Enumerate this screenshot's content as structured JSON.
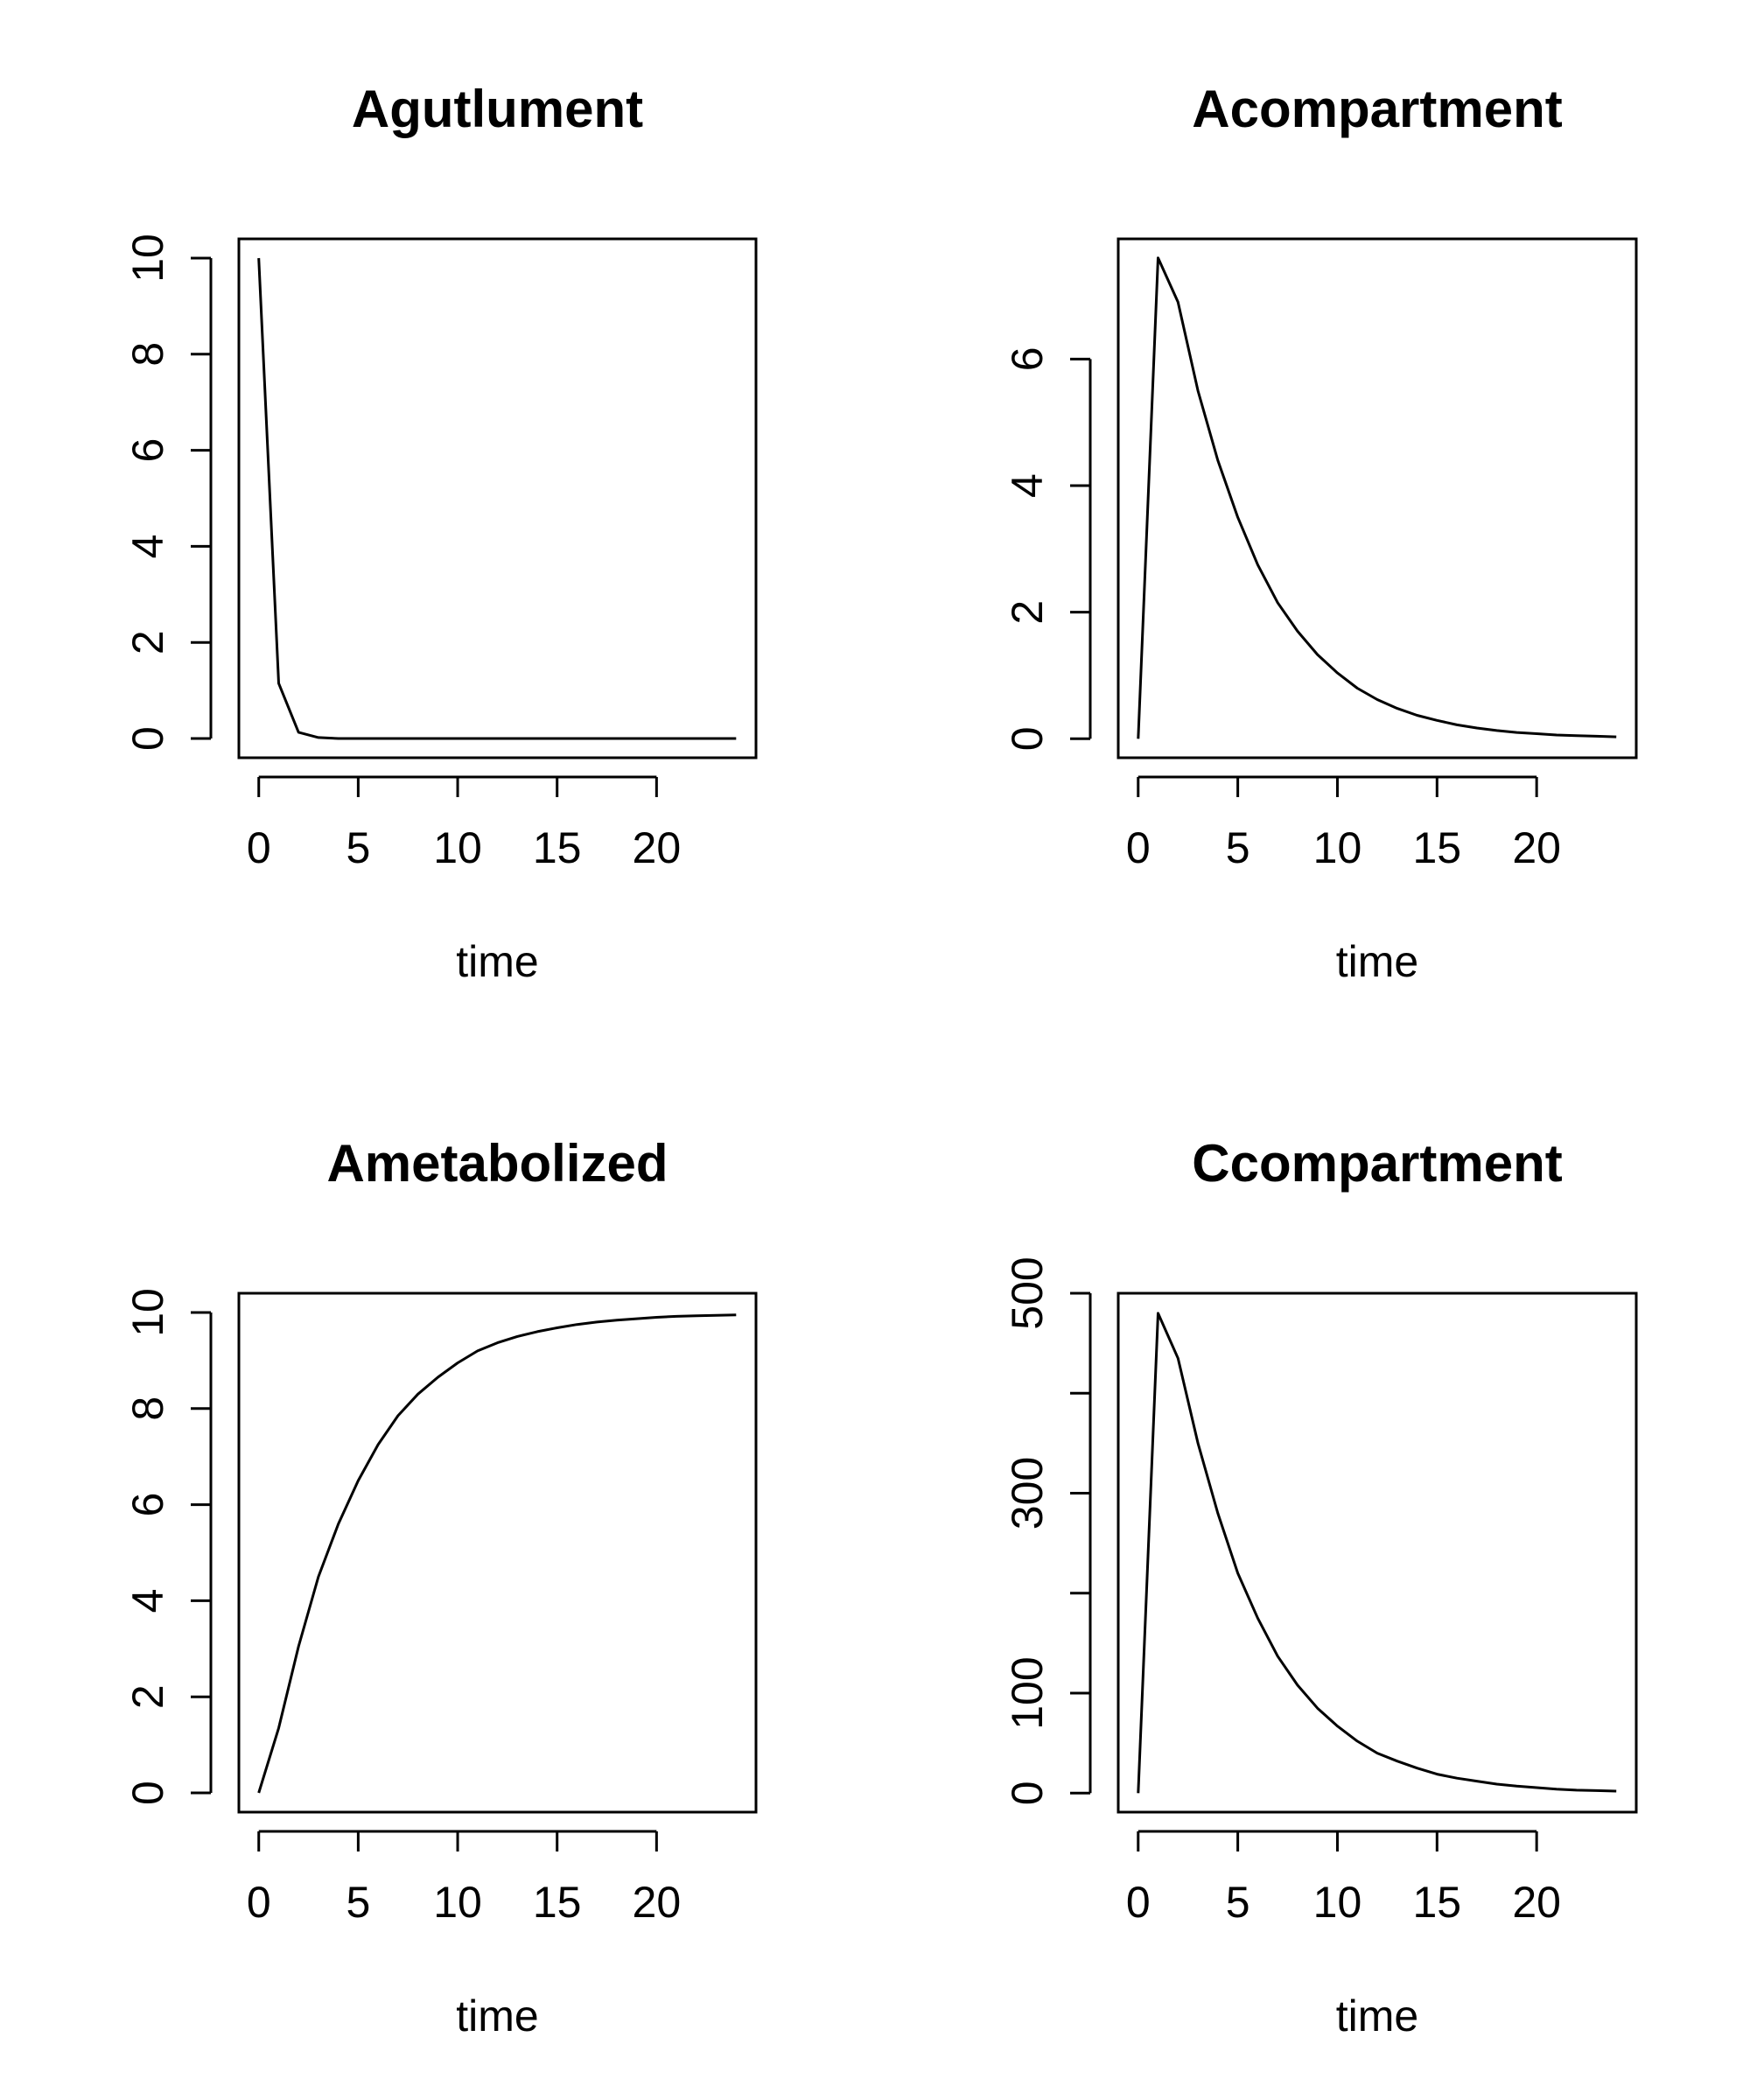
{
  "chart_data": [
    {
      "type": "line",
      "title": "Agutlument",
      "xlabel": "time",
      "ylabel": "",
      "xlim": [
        -1,
        25
      ],
      "ylim": [
        -0.4,
        10.4
      ],
      "xticks": [
        0,
        5,
        10,
        15,
        20
      ],
      "yticks": [
        0,
        2,
        4,
        6,
        8,
        10
      ],
      "grid": false,
      "series": [
        {
          "x": [
            0,
            1,
            2,
            3,
            4,
            5,
            6,
            7,
            8,
            9,
            10,
            11,
            12,
            13,
            14,
            15,
            16,
            17,
            18,
            19,
            20,
            21,
            22,
            23,
            24
          ],
          "y": [
            10,
            1.15,
            0.13,
            0.02,
            0,
            0,
            0,
            0,
            0,
            0,
            0,
            0,
            0,
            0,
            0,
            0,
            0,
            0,
            0,
            0,
            0,
            0,
            0,
            0,
            0
          ]
        }
      ]
    },
    {
      "type": "line",
      "title": "Acompartment",
      "xlabel": "time",
      "ylabel": "",
      "xlim": [
        -1,
        25
      ],
      "ylim": [
        -0.3,
        7.9
      ],
      "xticks": [
        0,
        5,
        10,
        15,
        20
      ],
      "yticks": [
        0,
        2,
        4,
        6
      ],
      "grid": false,
      "series": [
        {
          "x": [
            0,
            1,
            2,
            3,
            4,
            5,
            6,
            7,
            8,
            9,
            10,
            11,
            12,
            13,
            14,
            15,
            16,
            17,
            18,
            19,
            20,
            21,
            22,
            23,
            24
          ],
          "y": [
            0,
            7.6,
            6.9,
            5.5,
            4.4,
            3.5,
            2.75,
            2.15,
            1.7,
            1.33,
            1.04,
            0.8,
            0.62,
            0.48,
            0.37,
            0.29,
            0.22,
            0.17,
            0.13,
            0.1,
            0.08,
            0.06,
            0.05,
            0.04,
            0.03
          ]
        }
      ]
    },
    {
      "type": "line",
      "title": "Ametabolized",
      "xlabel": "time",
      "ylabel": "",
      "xlim": [
        -1,
        25
      ],
      "ylim": [
        -0.4,
        10.4
      ],
      "xticks": [
        0,
        5,
        10,
        15,
        20
      ],
      "yticks": [
        0,
        2,
        4,
        6,
        8,
        10
      ],
      "grid": false,
      "series": [
        {
          "x": [
            0,
            1,
            2,
            3,
            4,
            5,
            6,
            7,
            8,
            9,
            10,
            11,
            12,
            13,
            14,
            15,
            16,
            17,
            18,
            19,
            20,
            21,
            22,
            23,
            24
          ],
          "y": [
            0,
            1.35,
            3.05,
            4.5,
            5.6,
            6.5,
            7.25,
            7.85,
            8.3,
            8.65,
            8.95,
            9.2,
            9.37,
            9.5,
            9.6,
            9.68,
            9.75,
            9.8,
            9.84,
            9.87,
            9.9,
            9.92,
            9.93,
            9.94,
            9.95
          ]
        }
      ]
    },
    {
      "type": "line",
      "title": "Ccompartment",
      "xlabel": "time",
      "ylabel": "",
      "xlim": [
        -1,
        25
      ],
      "ylim": [
        -19,
        500
      ],
      "xticks": [
        0,
        5,
        10,
        15,
        20
      ],
      "yticks": [
        0,
        100,
        200,
        300,
        400,
        500
      ],
      "yticklabels": [
        "0",
        "100",
        "",
        "300",
        "",
        "500"
      ],
      "grid": false,
      "series": [
        {
          "x": [
            0,
            1,
            2,
            3,
            4,
            5,
            6,
            7,
            8,
            9,
            10,
            11,
            12,
            13,
            14,
            15,
            16,
            17,
            18,
            19,
            20,
            21,
            22,
            23,
            24
          ],
          "y": [
            0,
            480,
            435,
            350,
            280,
            220,
            175,
            137,
            108,
            85,
            67,
            52,
            40,
            32,
            25,
            19,
            15,
            12,
            9,
            7,
            5.5,
            4,
            3,
            2.5,
            2
          ]
        }
      ]
    }
  ]
}
